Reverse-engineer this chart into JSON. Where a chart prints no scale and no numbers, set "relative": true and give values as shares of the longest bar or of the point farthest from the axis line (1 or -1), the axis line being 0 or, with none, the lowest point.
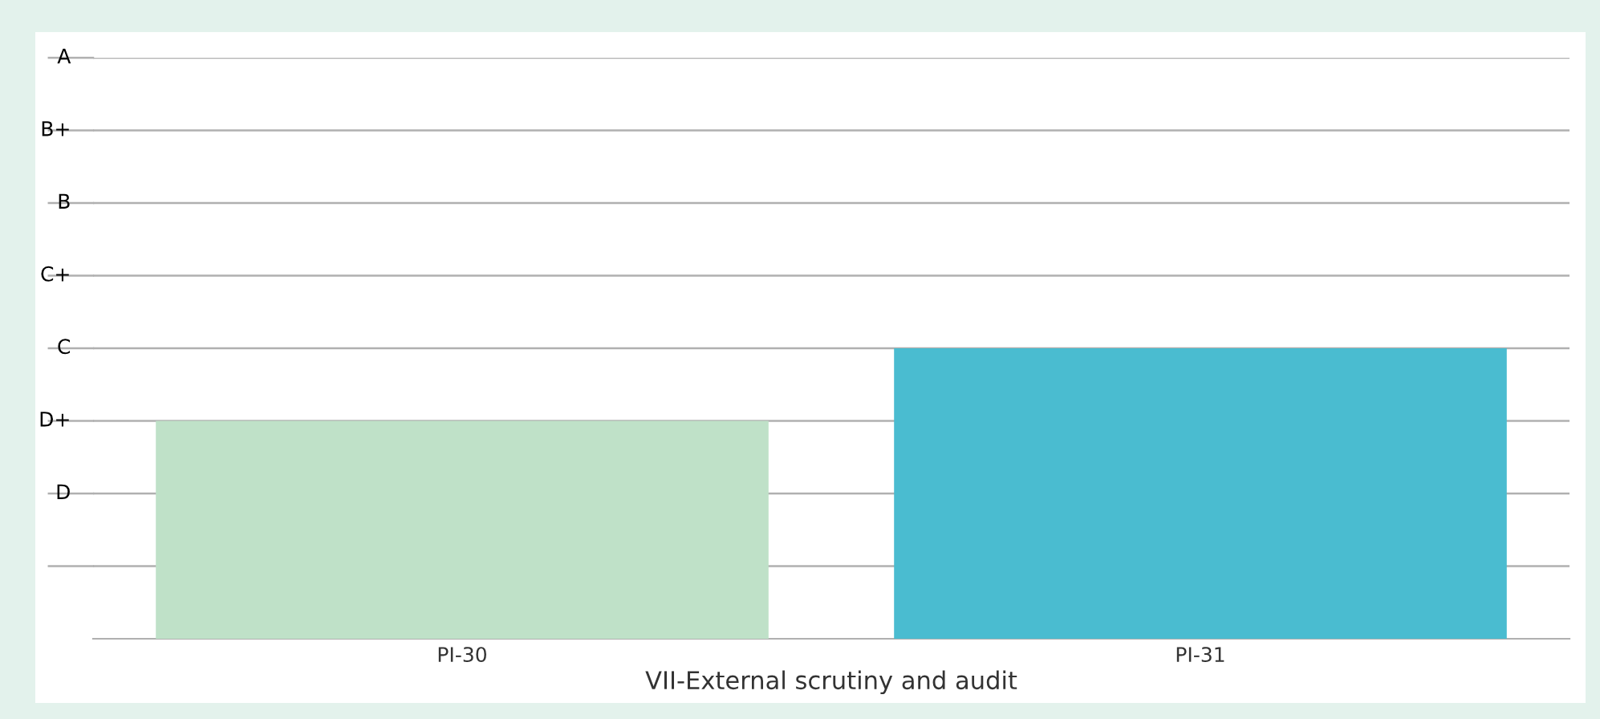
{
  "chart_data": {
    "type": "bar",
    "xlabel": "VII-External scrutiny and audit",
    "categories": [
      "PI-30",
      "PI-31"
    ],
    "values": [
      0.75,
      1
    ],
    "colors": [
      "#bfe1c8",
      "#4abcd0"
    ],
    "relative": true,
    "ref_lines": [
      {
        "axis": "y",
        "value": 0.25,
        "label": null
      },
      {
        "axis": "y",
        "value": 0.5,
        "label": "D"
      },
      {
        "axis": "y",
        "value": 0.75,
        "label": "D+"
      },
      {
        "axis": "y",
        "value": 1,
        "label": "C"
      },
      {
        "axis": "y",
        "value": 1.25,
        "label": "C+"
      },
      {
        "axis": "y",
        "value": 1.5,
        "label": "B"
      },
      {
        "axis": "y",
        "value": 1.75,
        "label": "B+"
      },
      {
        "axis": "y",
        "value": 2,
        "label": "A"
      }
    ]
  }
}
